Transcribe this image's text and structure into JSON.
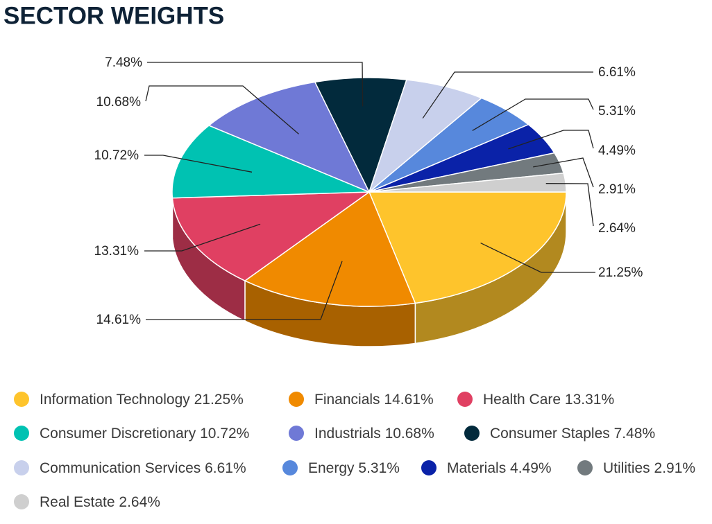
{
  "chart_data": {
    "type": "pie",
    "title": "SECTOR WEIGHTS",
    "categories": [
      "Information Technology",
      "Financials",
      "Health Care",
      "Consumer Discretionary",
      "Industrials",
      "Consumer Staples",
      "Communication Services",
      "Energy",
      "Materials",
      "Utilities",
      "Real Estate"
    ],
    "values": [
      21.25,
      14.61,
      13.31,
      10.72,
      10.68,
      7.48,
      6.61,
      5.31,
      4.49,
      2.91,
      2.64
    ],
    "value_labels": [
      "21.25%",
      "14.61%",
      "13.31%",
      "10.72%",
      "10.68%",
      "7.48%",
      "6.61%",
      "5.31%",
      "4.49%",
      "2.91%",
      "2.64%"
    ],
    "colors": [
      "#fec42c",
      "#f08a00",
      "#e04062",
      "#00c2b2",
      "#6f79d6",
      "#022a3c",
      "#c8d0ec",
      "#5788dc",
      "#0a22a8",
      "#727a7e",
      "#cfcfcf"
    ]
  }
}
